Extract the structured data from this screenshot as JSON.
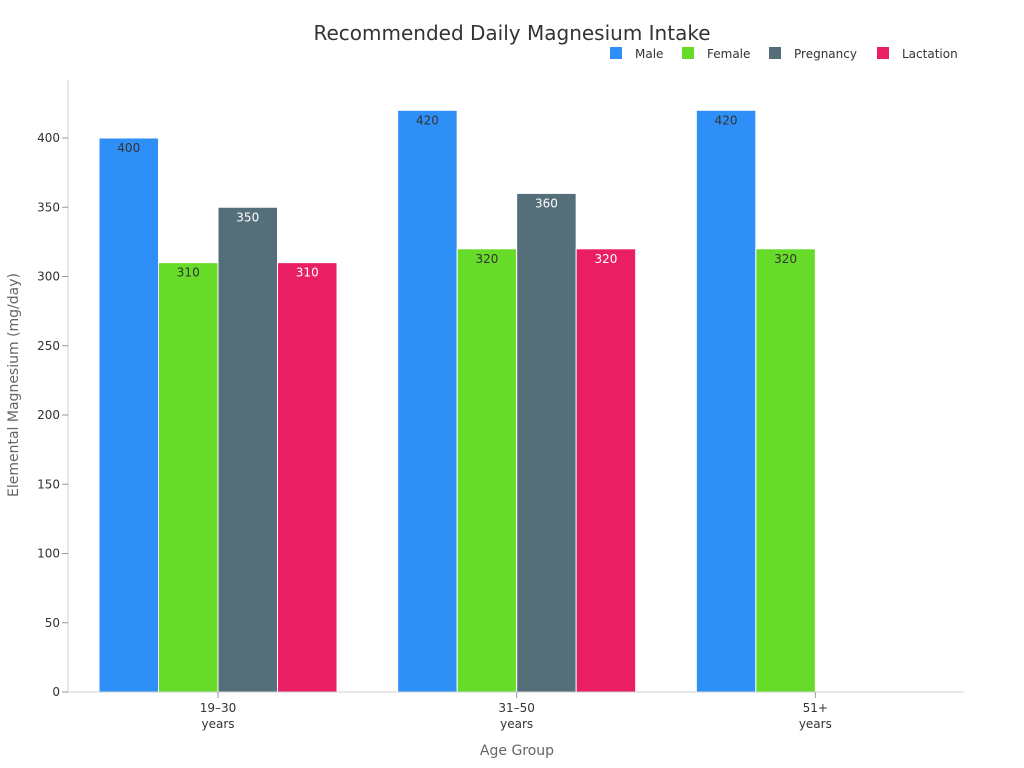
{
  "chart_data": {
    "type": "bar",
    "title": "Recommended Daily Magnesium Intake",
    "xlabel": "Age Group",
    "ylabel": "Elemental Magnesium (mg/day)",
    "categories": [
      [
        "19–30",
        "years"
      ],
      [
        "31–50",
        "years"
      ],
      [
        "51+",
        "years"
      ]
    ],
    "series": [
      {
        "name": "Male",
        "color": "#2E90F7",
        "values": [
          400,
          420,
          420
        ]
      },
      {
        "name": "Female",
        "color": "#66DB28",
        "values": [
          310,
          320,
          320
        ]
      },
      {
        "name": "Pregnancy",
        "color": "#546E7A",
        "values": [
          350,
          360,
          null
        ]
      },
      {
        "name": "Lactation",
        "color": "#E91E63",
        "values": [
          310,
          320,
          null
        ]
      }
    ],
    "ylim": [
      0,
      440
    ],
    "yticks": [
      0,
      50,
      100,
      150,
      200,
      250,
      300,
      350,
      400
    ],
    "legend_position": "top-right",
    "grid": false,
    "data_labels": true,
    "label_colors": {
      "dark": "#333333",
      "light": "#ffffff"
    }
  }
}
